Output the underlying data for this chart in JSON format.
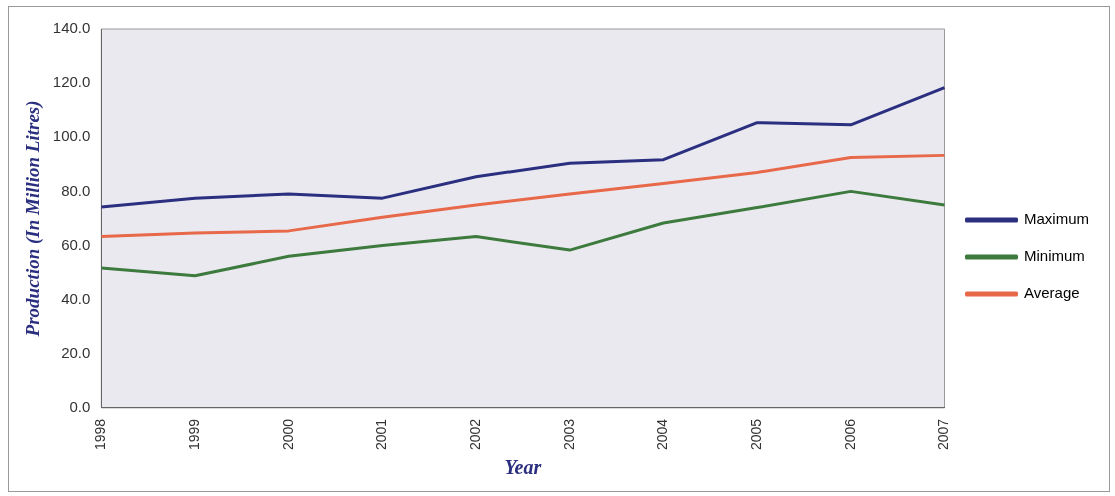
{
  "chart_data": {
    "type": "line",
    "xlabel": "Year",
    "ylabel": "Production (In Million Litres)",
    "categories": [
      "1998",
      "1999",
      "2000",
      "2001",
      "2002",
      "2003",
      "2004",
      "2005",
      "2006",
      "2007"
    ],
    "series": [
      {
        "name": "Maximum",
        "color": "#2b2f7f",
        "values": [
          74.2,
          77.5,
          79,
          77.5,
          85.4,
          90.4,
          91.7,
          105.4,
          104.6,
          118.3
        ]
      },
      {
        "name": "Minimum",
        "color": "#3d7a3d",
        "values": [
          51.7,
          48.8,
          56,
          60,
          63.3,
          58.3,
          68.3,
          74,
          80,
          75
        ]
      },
      {
        "name": "Average",
        "color": "#e8684a",
        "values": [
          63.3,
          64.6,
          65.4,
          70.4,
          75,
          79,
          82.9,
          87,
          92.5,
          93.3
        ]
      }
    ],
    "ylim": [
      0,
      140
    ],
    "yticks": [
      {
        "value": 0,
        "label": "0.0"
      },
      {
        "value": 20,
        "label": "20.0"
      },
      {
        "value": 40,
        "label": "40.0"
      },
      {
        "value": 60,
        "label": "60.0"
      },
      {
        "value": 80,
        "label": "80.0"
      },
      {
        "value": 100,
        "label": "100.0"
      },
      {
        "value": 120,
        "label": "120.0"
      },
      {
        "value": 140,
        "label": "140.0"
      }
    ],
    "grid": false,
    "legend": "right",
    "marker": "none",
    "line_style": "solid"
  }
}
